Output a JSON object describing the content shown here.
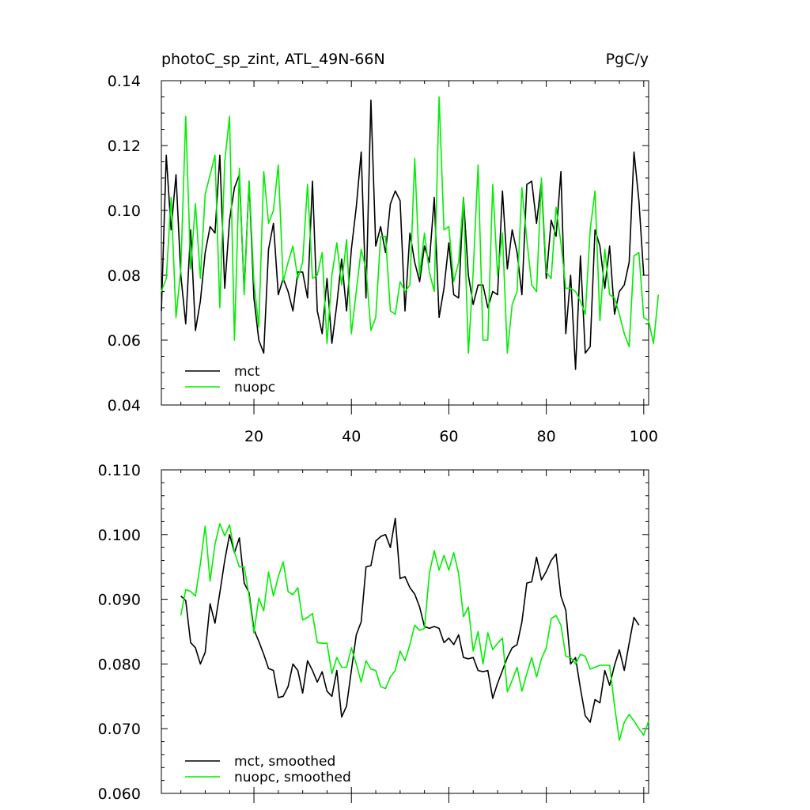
{
  "chart_data": [
    {
      "type": "line",
      "title": "photoC_sp_zint, ATL_49N-66N",
      "units": "PgC/y",
      "xlim": [
        1,
        101
      ],
      "ylim": [
        0.04,
        0.14
      ],
      "yticks": [
        "0.04",
        "0.06",
        "0.08",
        "0.10",
        "0.12",
        "0.14"
      ],
      "xticks": [
        "20",
        "40",
        "60",
        "80",
        "100"
      ],
      "legend_position": "bottom-left",
      "series": [
        {
          "name": "mct",
          "color": "#000000",
          "values": [
            0.069,
            0.117,
            0.094,
            0.111,
            0.08,
            0.065,
            0.094,
            0.063,
            0.072,
            0.087,
            0.095,
            0.093,
            0.117,
            0.076,
            0.097,
            0.107,
            0.111,
            0.075,
            0.109,
            0.073,
            0.06,
            0.056,
            0.088,
            0.096,
            0.074,
            0.079,
            0.075,
            0.069,
            0.081,
            0.081,
            0.073,
            0.109,
            0.069,
            0.062,
            0.079,
            0.059,
            0.071,
            0.085,
            0.069,
            0.088,
            0.101,
            0.118,
            0.073,
            0.134,
            0.089,
            0.095,
            0.087,
            0.102,
            0.106,
            0.103,
            0.069,
            0.093,
            0.084,
            0.078,
            0.089,
            0.084,
            0.104,
            0.067,
            0.076,
            0.09,
            0.074,
            0.073,
            0.104,
            0.08,
            0.071,
            0.077,
            0.077,
            0.07,
            0.075,
            0.074,
            0.106,
            0.082,
            0.094,
            0.087,
            0.074,
            0.108,
            0.109,
            0.096,
            0.109,
            0.079,
            0.097,
            0.092,
            0.112,
            0.062,
            0.08,
            0.051,
            0.086,
            0.056,
            0.058,
            0.094,
            0.089,
            0.076,
            0.089,
            0.068,
            0.075,
            0.077,
            0.084,
            0.118,
            0.103,
            0.08
          ]
        },
        {
          "name": "nuopc",
          "color": "#00ee00",
          "values": [
            0.075,
            0.079,
            0.104,
            0.067,
            0.082,
            0.129,
            0.082,
            0.102,
            0.079,
            0.105,
            0.111,
            0.117,
            0.07,
            0.115,
            0.129,
            0.06,
            0.113,
            0.074,
            0.109,
            0.078,
            0.064,
            0.112,
            0.096,
            0.1,
            0.114,
            0.078,
            0.084,
            0.089,
            0.079,
            0.084,
            0.108,
            0.079,
            0.08,
            0.087,
            0.059,
            0.08,
            0.09,
            0.077,
            0.091,
            0.062,
            0.075,
            0.088,
            0.082,
            0.063,
            0.067,
            0.092,
            0.092,
            0.069,
            0.068,
            0.078,
            0.075,
            0.077,
            0.116,
            0.08,
            0.093,
            0.081,
            0.075,
            0.135,
            0.094,
            0.095,
            0.078,
            0.084,
            0.104,
            0.056,
            0.081,
            0.114,
            0.06,
            0.06,
            0.108,
            0.08,
            0.093,
            0.056,
            0.071,
            0.075,
            0.107,
            0.091,
            0.077,
            0.075,
            0.11,
            0.081,
            0.079,
            0.101,
            0.09,
            0.076,
            0.076,
            0.075,
            0.072,
            0.068,
            0.094,
            0.106,
            0.066,
            0.088,
            0.074,
            0.073,
            0.068,
            0.062,
            0.058,
            0.086,
            0.087,
            0.067,
            0.066,
            0.059,
            0.074
          ]
        }
      ]
    },
    {
      "type": "line",
      "title": "",
      "units": "",
      "xlim": [
        1,
        101
      ],
      "ylim": [
        0.06,
        0.11
      ],
      "yticks": [
        "0.060",
        "0.070",
        "0.080",
        "0.090",
        "0.100",
        "0.110"
      ],
      "xticks": [],
      "legend_position": "bottom-left",
      "series": [
        {
          "name": "mct, smoothed",
          "color": "#000000",
          "x_start": 5,
          "values": [
            0.0905,
            0.0898,
            0.0833,
            0.0825,
            0.08,
            0.0818,
            0.0893,
            0.0863,
            0.091,
            0.096,
            0.1,
            0.0972,
            0.0995,
            0.0925,
            0.091,
            0.0853,
            0.0835,
            0.0815,
            0.0793,
            0.079,
            0.0748,
            0.075,
            0.0765,
            0.08,
            0.079,
            0.0755,
            0.0805,
            0.079,
            0.0772,
            0.0788,
            0.0758,
            0.075,
            0.079,
            0.0718,
            0.0735,
            0.079,
            0.0845,
            0.0865,
            0.095,
            0.0952,
            0.099,
            0.0997,
            0.1,
            0.098,
            0.1025,
            0.0932,
            0.0935,
            0.0918,
            0.0908,
            0.0888,
            0.0858,
            0.0855,
            0.0858,
            0.0855,
            0.0833,
            0.084,
            0.083,
            0.0845,
            0.081,
            0.0808,
            0.081,
            0.079,
            0.0788,
            0.079,
            0.0747,
            0.077,
            0.079,
            0.081,
            0.0825,
            0.083,
            0.0865,
            0.0925,
            0.0927,
            0.0965,
            0.093,
            0.0943,
            0.096,
            0.097,
            0.0905,
            0.0883,
            0.08,
            0.081,
            0.0762,
            0.072,
            0.071,
            0.0745,
            0.074,
            0.079,
            0.0767,
            0.0798,
            0.0822,
            0.079,
            0.0832,
            0.0872,
            0.086
          ]
        },
        {
          "name": "nuopc, smoothed",
          "color": "#00ee00",
          "x_start": 5,
          "values": [
            0.0875,
            0.0915,
            0.0912,
            0.0905,
            0.0955,
            0.1013,
            0.0928,
            0.0985,
            0.1017,
            0.0998,
            0.1015,
            0.0973,
            0.095,
            0.095,
            0.0905,
            0.0848,
            0.0902,
            0.0882,
            0.0942,
            0.0905,
            0.0935,
            0.0958,
            0.0912,
            0.0907,
            0.0918,
            0.0868,
            0.0872,
            0.0878,
            0.0833,
            0.0832,
            0.0832,
            0.0785,
            0.081,
            0.0795,
            0.0795,
            0.0825,
            0.08,
            0.0772,
            0.0805,
            0.0792,
            0.079,
            0.0765,
            0.0762,
            0.078,
            0.079,
            0.082,
            0.0805,
            0.083,
            0.086,
            0.0852,
            0.0855,
            0.094,
            0.0975,
            0.0945,
            0.0968,
            0.0945,
            0.0972,
            0.094,
            0.0873,
            0.0888,
            0.082,
            0.085,
            0.08,
            0.0848,
            0.0822,
            0.0832,
            0.084,
            0.0757,
            0.0775,
            0.0795,
            0.0758,
            0.0785,
            0.081,
            0.078,
            0.0808,
            0.0825,
            0.087,
            0.0875,
            0.086,
            0.0812,
            0.081,
            0.08,
            0.0815,
            0.0812,
            0.0792,
            0.0795,
            0.0798,
            0.0798,
            0.0798,
            0.0735,
            0.0682,
            0.071,
            0.0722,
            0.0712,
            0.07,
            0.069,
            0.0712
          ]
        }
      ]
    }
  ]
}
